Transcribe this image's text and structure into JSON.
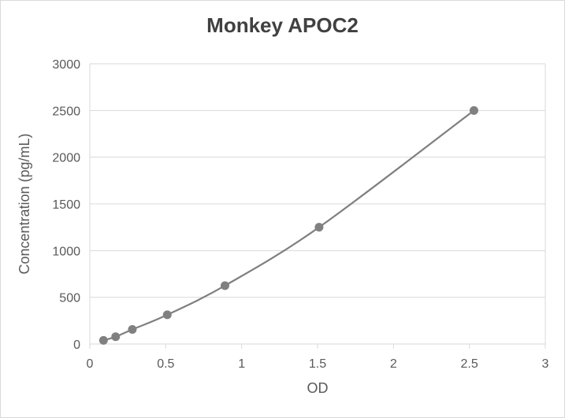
{
  "chart_data": {
    "type": "scatter",
    "title": "Monkey APOC2",
    "xlabel": "OD",
    "ylabel": "Concentration (pg/mL)",
    "xlim": [
      0,
      3
    ],
    "ylim": [
      0,
      3000
    ],
    "x_ticks": [
      "0",
      "0.5",
      "1",
      "1.5",
      "2",
      "2.5",
      "3"
    ],
    "y_ticks": [
      "0",
      "500",
      "1000",
      "1500",
      "2000",
      "2500",
      "3000"
    ],
    "grid": "horizontal",
    "legend": "none",
    "smooth_line": true,
    "series": [
      {
        "x": [
          0.09,
          0.17,
          0.28,
          0.51,
          0.89,
          1.51,
          2.53
        ],
        "y": [
          39,
          78,
          156,
          313,
          625,
          1250,
          2500
        ]
      }
    ],
    "colors": {
      "series": "#808080",
      "line": "#7f7f7f",
      "grid": "#d9d9d9",
      "text": "#595959",
      "title": "#404040"
    }
  }
}
